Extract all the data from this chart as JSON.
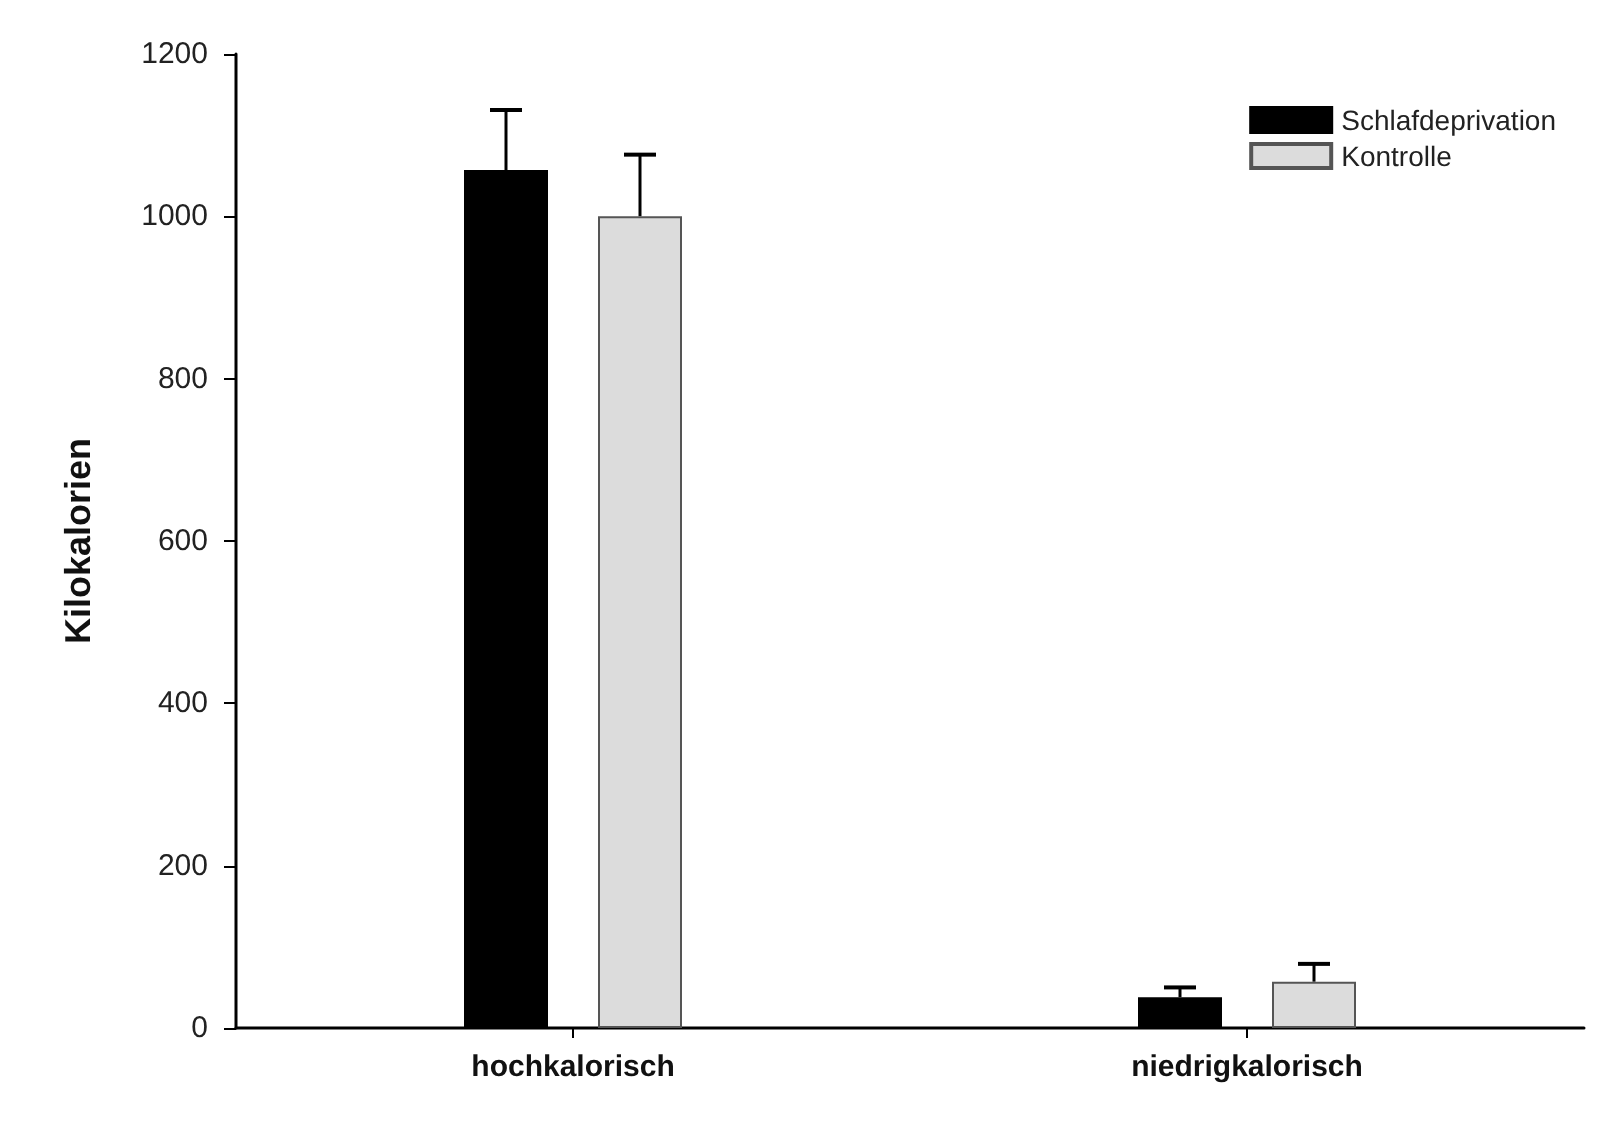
{
  "chart_data": {
    "type": "bar",
    "ylabel": "Kilokalorien",
    "categories": [
      "hochkalorisch",
      "niedrigkalorisch"
    ],
    "series": [
      {
        "name": "Schlafdeprivation",
        "color": "#000000",
        "values": [
          1057,
          38
        ],
        "errors": [
          [
            1057,
            1131
          ],
          [
            38,
            50
          ]
        ]
      },
      {
        "name": "Kontrolle",
        "color": "#dcdcdc",
        "values": [
          1000,
          57
        ],
        "errors": [
          [
            1000,
            1076
          ],
          [
            57,
            79
          ]
        ]
      }
    ],
    "ylim": [
      0,
      1200
    ],
    "yticks": [
      0,
      200,
      400,
      600,
      800,
      1000,
      1200
    ],
    "grid": false,
    "legend": "top right"
  }
}
